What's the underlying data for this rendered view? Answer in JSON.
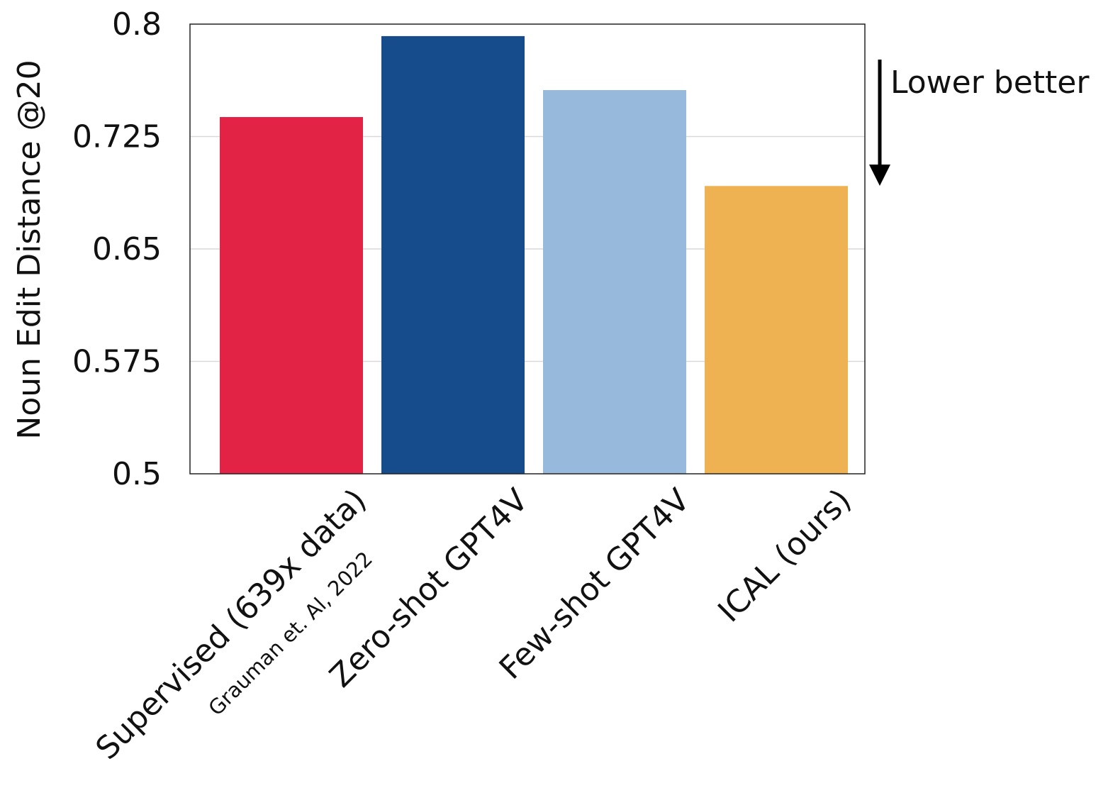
{
  "chart_data": {
    "type": "bar",
    "categories": [
      "Supervised (639x data)",
      "Zero-shot GPT4V",
      "Few-shot GPT4V",
      "ICAL (ours)"
    ],
    "category_sublabels": [
      "Grauman et. Al, 2022",
      "",
      "",
      ""
    ],
    "values": [
      0.738,
      0.792,
      0.756,
      0.692
    ],
    "colors": [
      "#e22345",
      "#174c8c",
      "#97b9db",
      "#efb253"
    ],
    "title": "",
    "xlabel": "",
    "ylabel": "Noun Edit Distance @20",
    "ylim": [
      0.5,
      0.8
    ],
    "yticks": [
      "0.5",
      "0.575",
      "0.65",
      "0.725",
      "0.8"
    ],
    "grid": "horizontal",
    "annotation": "Lower better"
  }
}
